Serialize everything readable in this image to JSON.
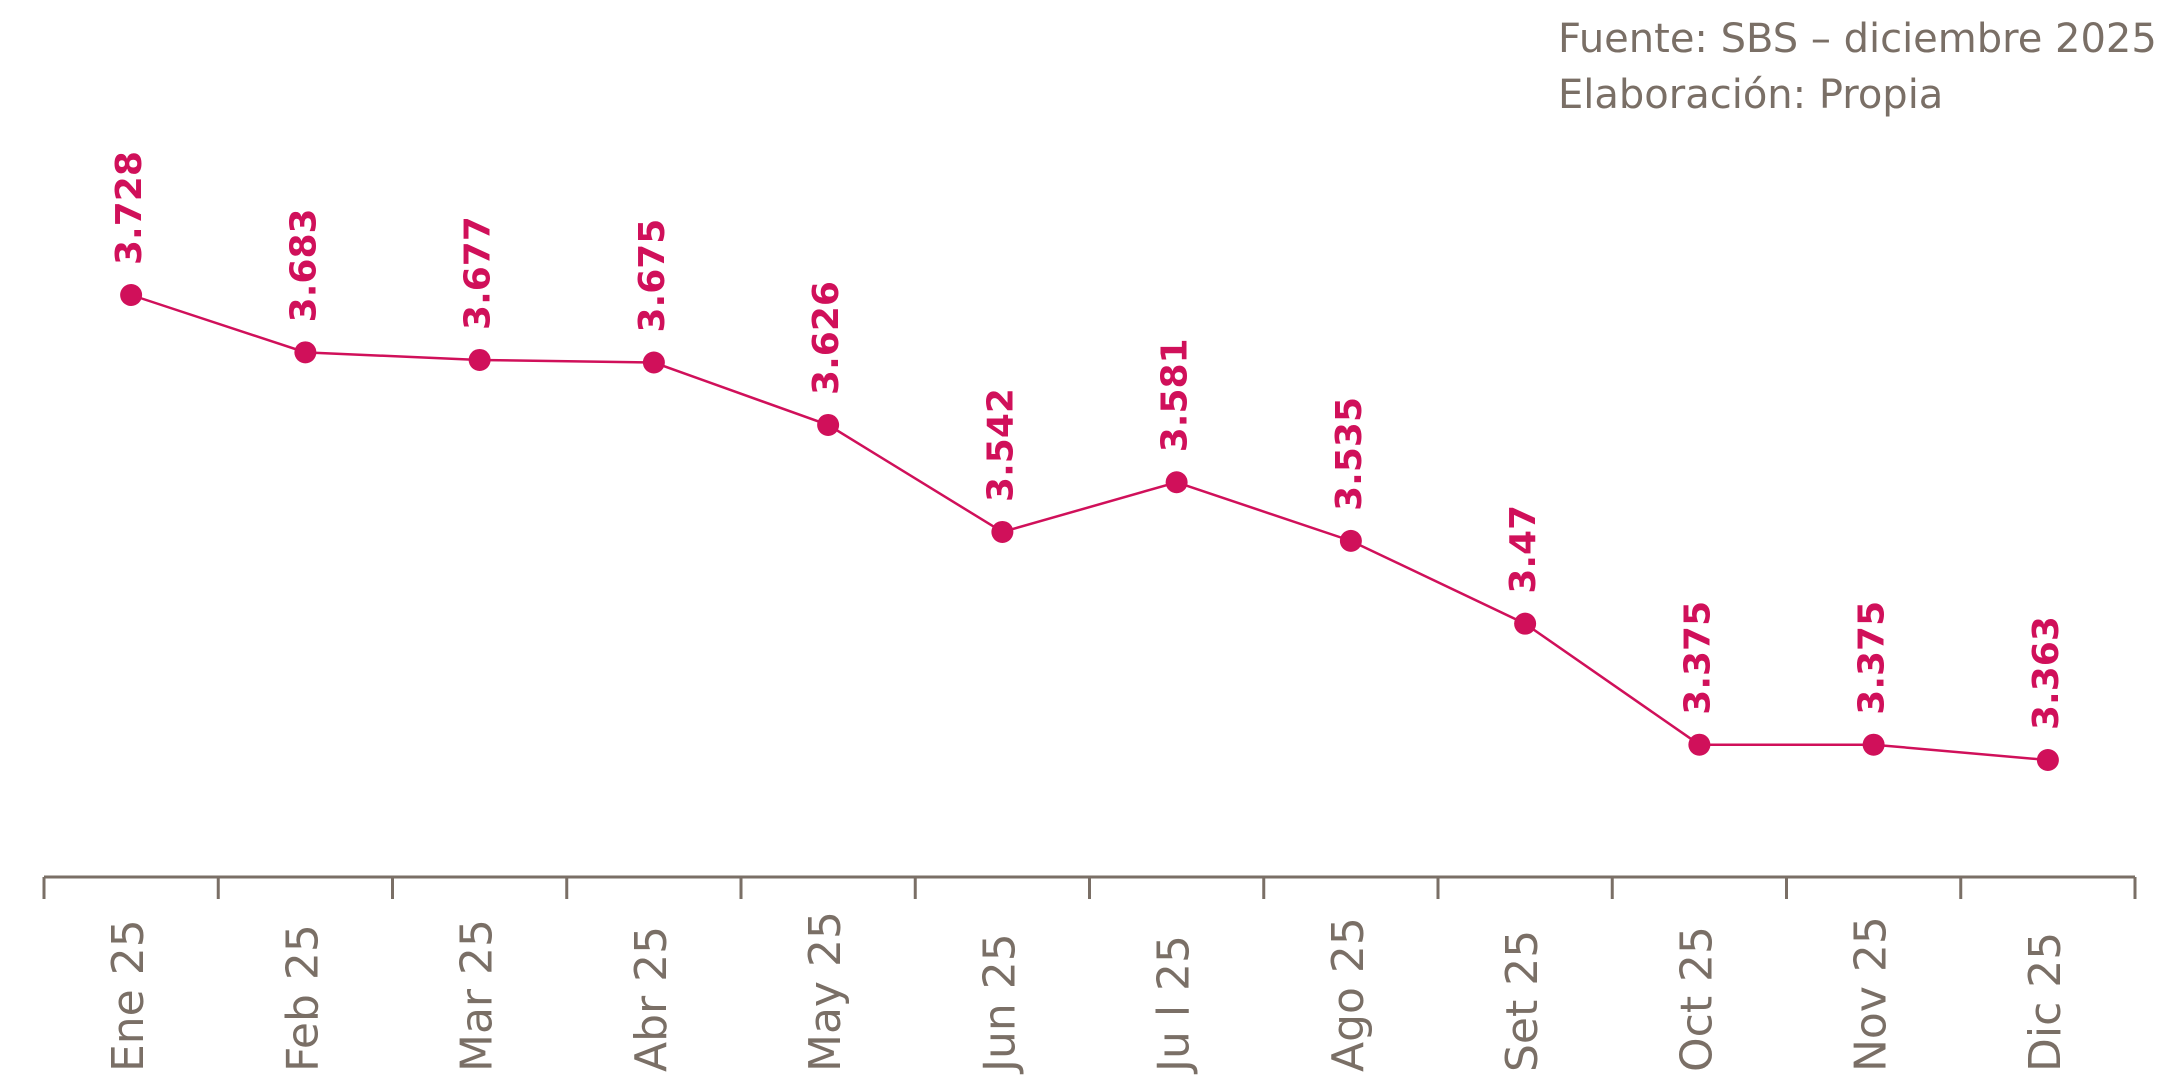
{
  "chart_data": {
    "type": "line",
    "source": "Fuente: SBS – diciembre 2025",
    "note": "Elaboración: Propia",
    "categories": [
      "Ene 25",
      "Feb 25",
      "Mar 25",
      "Abr 25",
      "May 25",
      "Jun 25",
      "Ju l 25",
      "Ago 25",
      "Set 25",
      "Oct 25",
      "Nov 25",
      "Dic 25"
    ],
    "series": [
      {
        "name": null,
        "color": "#d0105a",
        "values": [
          3.728,
          3.683,
          3.677,
          3.675,
          3.626,
          3.542,
          3.581,
          3.535,
          3.47,
          3.375,
          3.375,
          3.363
        ]
      }
    ],
    "grid": false
  }
}
